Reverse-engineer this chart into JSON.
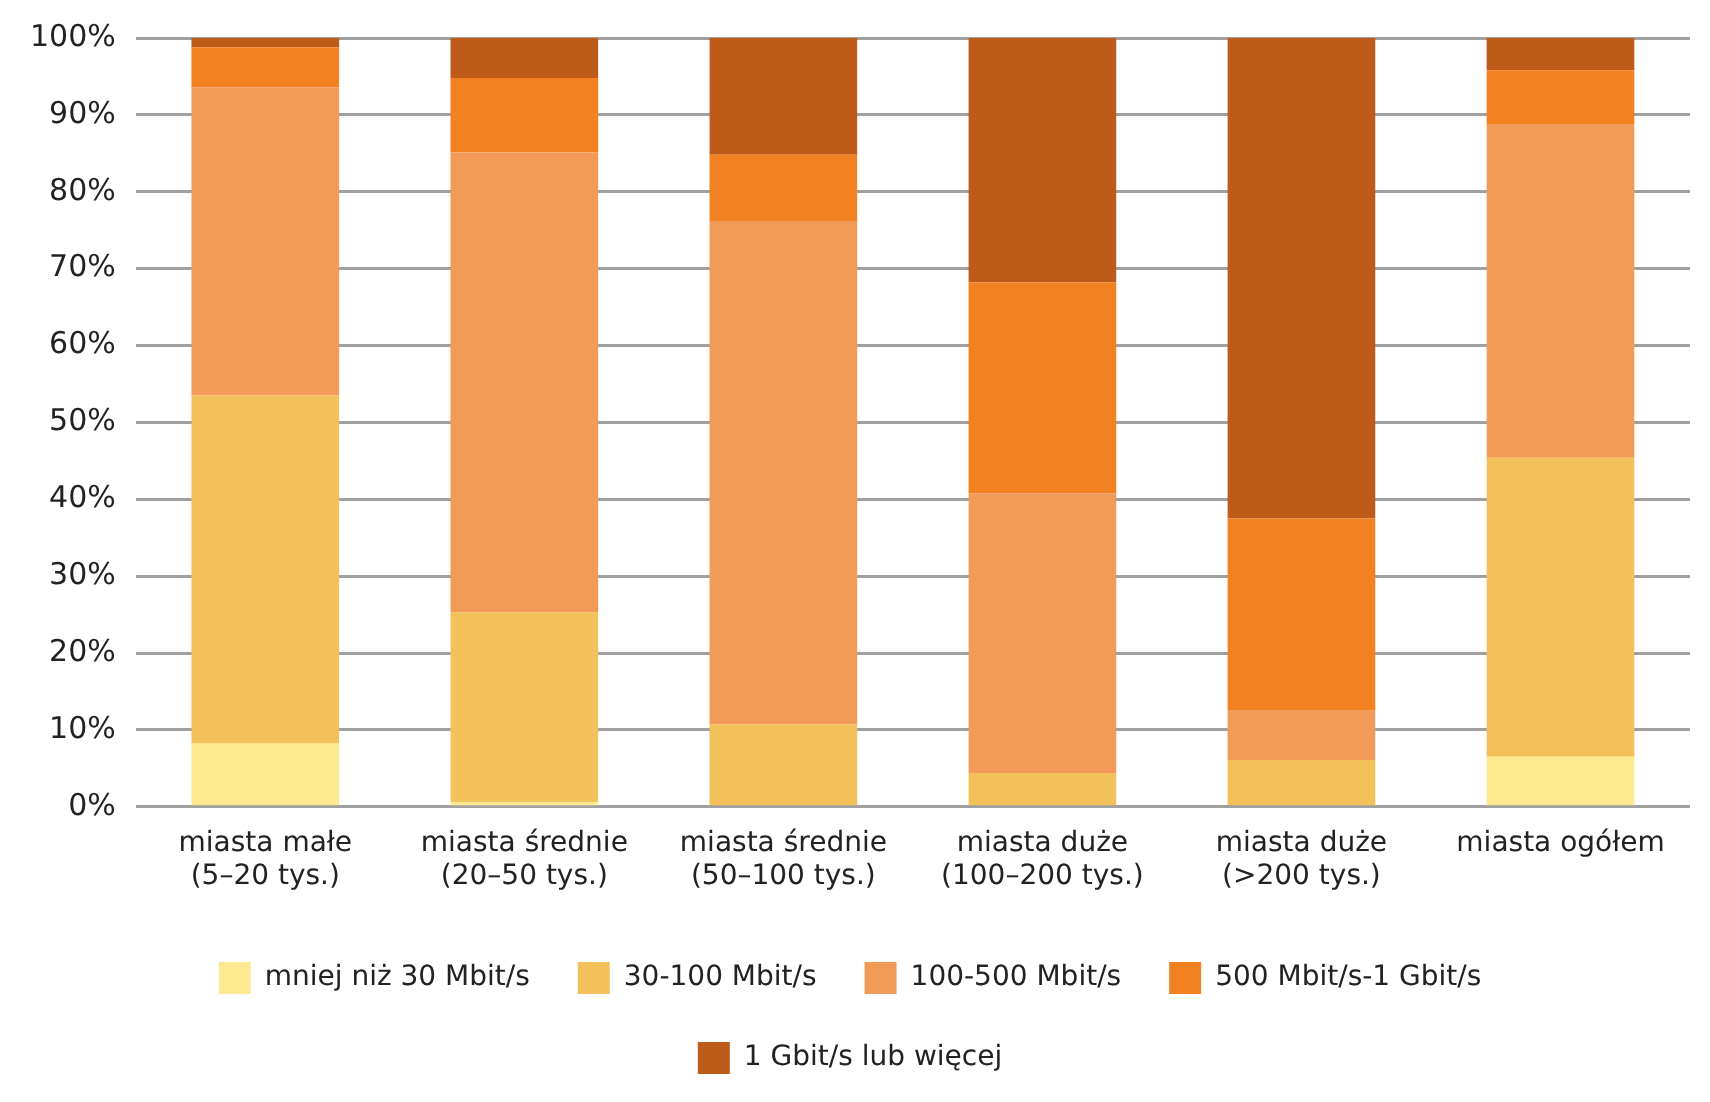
{
  "chart_data": {
    "type": "bar",
    "stacked": true,
    "categories": [
      "miasta małe\n(5–20 tys.)",
      "miasta średnie\n(20–50 tys.)",
      "miasta średnie\n(50–100 tys.)",
      "miasta duże\n(100–200 tys.)",
      "miasta duże\n(>200 tys.)",
      "miasta ogółem"
    ],
    "series": [
      {
        "name": "mniej niż 30 Mbit/s",
        "color": "#fde98f",
        "values": [
          8.3,
          0.6,
          0,
          0,
          0,
          6.5
        ]
      },
      {
        "name": "30-100 Mbit/s",
        "color": "#f3c15a",
        "values": [
          45.2,
          24.7,
          10.7,
          4.4,
          6.1,
          38.9
        ]
      },
      {
        "name": "100-500 Mbit/s",
        "color": "#f29b58",
        "values": [
          40.1,
          59.8,
          65.5,
          36.4,
          6.4,
          43.4
        ]
      },
      {
        "name": "500 Mbit/s-1 Gbit/s",
        "color": "#f28122",
        "values": [
          5.2,
          9.7,
          8.6,
          27.4,
          25.0,
          7.0
        ]
      },
      {
        "name": "1 Gbit/s lub więcej",
        "color": "#bf5b18",
        "values": [
          1.2,
          5.2,
          15.2,
          31.8,
          62.5,
          4.2
        ]
      }
    ],
    "ylim": [
      0,
      100
    ],
    "yticks": [
      {
        "value": 0,
        "label": "0%"
      },
      {
        "value": 10,
        "label": "10%"
      },
      {
        "value": 20,
        "label": "20%"
      },
      {
        "value": 30,
        "label": "30%"
      },
      {
        "value": 40,
        "label": "40%"
      },
      {
        "value": 50,
        "label": "50%"
      },
      {
        "value": 60,
        "label": "60%"
      },
      {
        "value": 70,
        "label": "70%"
      },
      {
        "value": 80,
        "label": "80%"
      },
      {
        "value": 90,
        "label": "90%"
      },
      {
        "value": 100,
        "label": "100%"
      }
    ],
    "grid": "y",
    "legend": "bottom"
  }
}
